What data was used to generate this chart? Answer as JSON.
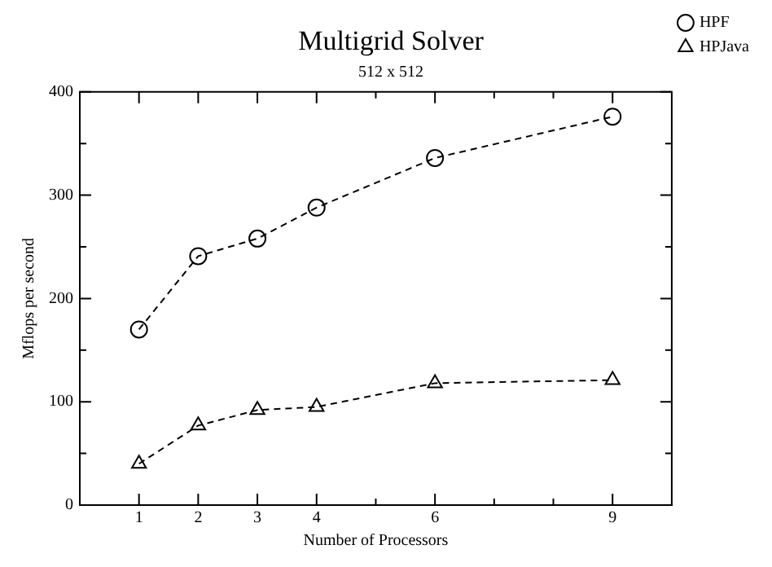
{
  "chart_data": {
    "type": "line",
    "title": "Multigrid Solver",
    "subtitle": "512 x 512",
    "xlabel": "Number of Processors",
    "ylabel": "Mflops per second",
    "x": [
      1,
      2,
      3,
      4,
      6,
      9
    ],
    "series": [
      {
        "name": "HPF",
        "color": "#000000",
        "marker": "circle",
        "line_style": "dashed",
        "values": [
          170,
          241,
          258,
          288,
          336,
          376
        ]
      },
      {
        "name": "HPJava",
        "color": "#000000",
        "marker": "triangle",
        "line_style": "dashed",
        "values": [
          40,
          77,
          92,
          95,
          118,
          121
        ]
      }
    ],
    "xlim": [
      0,
      10
    ],
    "xticks": [
      1,
      2,
      3,
      4,
      {
        "value": 5,
        "label": null
      },
      6,
      {
        "value": 7,
        "label": null
      },
      {
        "value": 8,
        "label": null
      },
      9
    ],
    "ylim": [
      0,
      400
    ],
    "yticks": [
      0,
      {
        "value": 50,
        "label": null
      },
      100,
      {
        "value": 150,
        "label": null
      },
      200,
      {
        "value": 250,
        "label": null
      },
      300,
      {
        "value": 350,
        "label": null
      },
      400
    ],
    "grid": false,
    "legend": "top right"
  }
}
